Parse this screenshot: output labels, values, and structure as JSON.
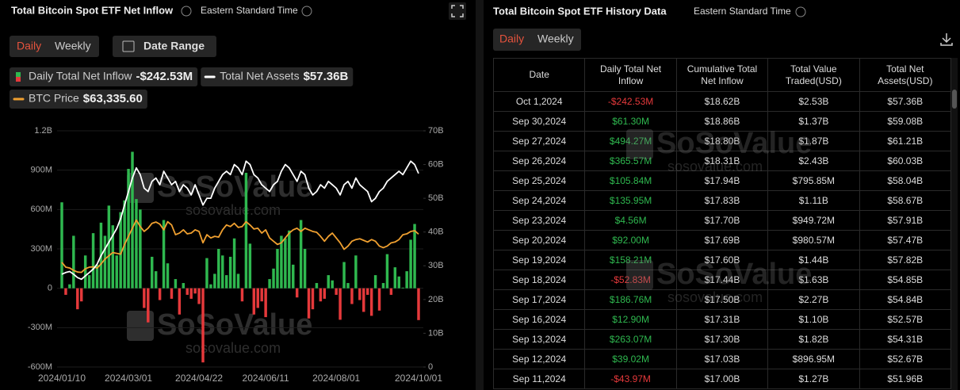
{
  "left_panel": {
    "title": "Total Bitcoin Spot ETF Net Inflow",
    "timezone": "Eastern Standard Time",
    "tabs": [
      "Daily",
      "Weekly"
    ],
    "date_range": "Date Range"
  },
  "chart_data": {
    "type": "bar",
    "categories": [
      "2024/01/10",
      null,
      null,
      null,
      null,
      null,
      null,
      null,
      null,
      null,
      null,
      null,
      null,
      null,
      null,
      null,
      null,
      "2024/03/01",
      null,
      null,
      null,
      null,
      null,
      null,
      null,
      null,
      null,
      null,
      null,
      null,
      null,
      null,
      null,
      null,
      null,
      "2024/04/22",
      null,
      null,
      null,
      null,
      null,
      null,
      null,
      null,
      null,
      null,
      null,
      null,
      null,
      null,
      null,
      null,
      "2024/06/11",
      null,
      null,
      null,
      null,
      null,
      null,
      null,
      null,
      null,
      null,
      null,
      null,
      null,
      null,
      null,
      null,
      null,
      "2024/08/01",
      null,
      null,
      null,
      null,
      null,
      null,
      null,
      null,
      null,
      null,
      null,
      null,
      null,
      null,
      null,
      null,
      null,
      null,
      null,
      null,
      "2024/10/01"
    ],
    "series": [
      {
        "name": "Daily Total Net Inflow",
        "type": "bar",
        "color": "#2fb84f",
        "negative_color": "#e5393b",
        "legend_value": "-$242.53M",
        "values": [
          655,
          -50,
          30,
          400,
          -160,
          -100,
          250,
          100,
          420,
          180,
          500,
          400,
          630,
          480,
          250,
          580,
          670,
          910,
          1040,
          680,
          600,
          -150,
          -260,
          240,
          130,
          -90,
          520,
          190,
          -80,
          70,
          -200,
          40,
          -50,
          -80,
          -40,
          -120,
          -565,
          230,
          30,
          110,
          300,
          250,
          100,
          240,
          380,
          110,
          -100,
          880,
          340,
          -200,
          -150,
          -100,
          -220,
          70,
          150,
          300,
          400,
          380,
          440,
          180,
          -70,
          520,
          300,
          -230,
          -160,
          40,
          -100,
          -80,
          100,
          60,
          -50,
          -240,
          200,
          40,
          -120,
          250,
          -90,
          -180,
          -50,
          -210,
          100,
          -170,
          40,
          260,
          -50,
          160,
          90,
          5,
          130,
          370,
          490,
          -242.53
        ]
      },
      {
        "name": "Total Net Assets",
        "type": "line",
        "axis": "y2",
        "color": "#ffffff",
        "legend_value": "$57.36B",
        "values": [
          27.5,
          28,
          28.3,
          27.5,
          26.5,
          26,
          27,
          28,
          29,
          30.5,
          33,
          35,
          37,
          39,
          41,
          44,
          48,
          52,
          56,
          59,
          57,
          53,
          52,
          55,
          56,
          54,
          58,
          56,
          54,
          55,
          52,
          54,
          53,
          51,
          54,
          51,
          48,
          50,
          50,
          53,
          55,
          57,
          58,
          57,
          60,
          59,
          57,
          61,
          60,
          57,
          56,
          54,
          53,
          52,
          54,
          55,
          58,
          60,
          59,
          57,
          55,
          58,
          57,
          53,
          51,
          52,
          54,
          53,
          55,
          54,
          53,
          51,
          54,
          55,
          53,
          56,
          54,
          53,
          52,
          49,
          50,
          52,
          53,
          55,
          56,
          57,
          58,
          57,
          59,
          61,
          60,
          57.36
        ]
      },
      {
        "name": "BTC Price",
        "type": "line",
        "axis": "y3",
        "color": "#f0a030",
        "legend_value": "$63,335.60",
        "values": [
          46000,
          43000,
          42500,
          41000,
          40000,
          39800,
          42000,
          43000,
          43200,
          42500,
          45000,
          48000,
          50000,
          52000,
          51500,
          51000,
          57000,
          62000,
          67000,
          72000,
          68000,
          65000,
          67000,
          70000,
          70800,
          69500,
          66000,
          71000,
          69000,
          63000,
          64000,
          66000,
          63500,
          64000,
          66000,
          65000,
          58000,
          63000,
          61000,
          62000,
          61500,
          66000,
          69000,
          68000,
          70000,
          67500,
          68000,
          71000,
          69000,
          66500,
          67000,
          64000,
          66000,
          61000,
          59000,
          57000,
          58000,
          61000,
          64000,
          66000,
          67000,
          65000,
          67000,
          66000,
          65000,
          64500,
          62000,
          59000,
          62000,
          64000,
          61000,
          58000,
          54000,
          56000,
          59000,
          60000,
          60500,
          59500,
          58500,
          60000,
          59000,
          56000,
          55000,
          56000,
          58000,
          58500,
          60000,
          63000,
          63500,
          65000,
          65500,
          63335.6
        ]
      }
    ],
    "ylim": [
      -600,
      1200
    ],
    "yticks": [
      {
        "value": 1200,
        "label": "1.2B"
      },
      {
        "value": 900,
        "label": "900M"
      },
      {
        "value": 600,
        "label": "600M"
      },
      {
        "value": 300,
        "label": "300M"
      },
      0,
      {
        "value": -300,
        "label": "-300M"
      },
      {
        "value": -600,
        "label": "-600M"
      }
    ],
    "y2lim": [
      0,
      70
    ],
    "y2ticks": [
      {
        "value": 70,
        "label": "70B"
      },
      {
        "value": 60,
        "label": "60B"
      },
      {
        "value": 50,
        "label": "50B"
      },
      {
        "value": 40,
        "label": "40B"
      },
      {
        "value": 30,
        "label": "30B"
      },
      {
        "value": 20,
        "label": "20B"
      },
      {
        "value": 10,
        "label": "10B"
      },
      0
    ],
    "y3lim": [
      -18500,
      127000
    ],
    "grid": true
  },
  "watermark": {
    "brand": "SoSoValue",
    "url": "sosovalue.com"
  },
  "right_panel": {
    "title": "Total Bitcoin Spot ETF History Data",
    "timezone": "Eastern Standard Time",
    "tabs": [
      "Daily",
      "Weekly"
    ]
  },
  "table": {
    "columns": [
      "Date",
      "Daily Total Net Inflow",
      "Cumulative Total Net Inflow",
      "Total Value Traded(USD)",
      "Total Net Assets(USD)"
    ],
    "positive_color": "#2fb84f",
    "negative_color": "#e5393b",
    "colored_column": 1,
    "rows": [
      [
        "Oct 1,2024",
        "-$242.53M",
        "$18.62B",
        "$2.53B",
        "$57.36B"
      ],
      [
        "Sep 30,2024",
        "$61.30M",
        "$18.86B",
        "$1.37B",
        "$59.08B"
      ],
      [
        "Sep 27,2024",
        "$494.27M",
        "$18.80B",
        "$1.87B",
        "$61.21B"
      ],
      [
        "Sep 26,2024",
        "$365.57M",
        "$18.31B",
        "$2.43B",
        "$60.03B"
      ],
      [
        "Sep 25,2024",
        "$105.84M",
        "$17.94B",
        "$795.85M",
        "$58.04B"
      ],
      [
        "Sep 24,2024",
        "$135.95M",
        "$17.83B",
        "$1.11B",
        "$58.67B"
      ],
      [
        "Sep 23,2024",
        "$4.56M",
        "$17.70B",
        "$949.72M",
        "$57.91B"
      ],
      [
        "Sep 20,2024",
        "$92.00M",
        "$17.69B",
        "$980.57M",
        "$57.47B"
      ],
      [
        "Sep 19,2024",
        "$158.21M",
        "$17.60B",
        "$1.44B",
        "$57.82B"
      ],
      [
        "Sep 18,2024",
        "-$52.83M",
        "$17.44B",
        "$1.63B",
        "$54.85B"
      ],
      [
        "Sep 17,2024",
        "$186.76M",
        "$17.50B",
        "$2.27B",
        "$54.84B"
      ],
      [
        "Sep 16,2024",
        "$12.90M",
        "$17.31B",
        "$1.10B",
        "$52.57B"
      ],
      [
        "Sep 13,2024",
        "$263.07M",
        "$17.30B",
        "$1.82B",
        "$54.31B"
      ],
      [
        "Sep 12,2024",
        "$39.02M",
        "$17.03B",
        "$896.95M",
        "$52.67B"
      ],
      [
        "Sep 11,2024",
        "-$43.97M",
        "$17.00B",
        "$1.27B",
        "$51.96B"
      ]
    ]
  }
}
